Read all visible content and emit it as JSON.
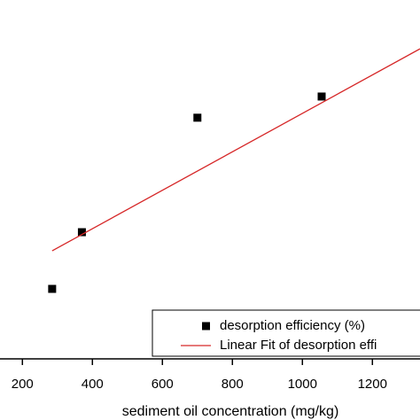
{
  "chart_data": {
    "type": "scatter",
    "x_label": "sediment oil concentration (mg/kg)",
    "xlim": [
      136,
      1336
    ],
    "xticks": [
      200,
      400,
      600,
      800,
      1000,
      1200
    ],
    "ylim": [
      0,
      100
    ],
    "series": [
      {
        "name": "desorption efficiency (%)",
        "color": "#000000",
        "kind": "scatter",
        "x": [
          285,
          370,
          700,
          1055
        ],
        "values": [
          19.5,
          35.3,
          67.2,
          73.1
        ]
      },
      {
        "name": "Linear Fit of desorption effi",
        "color": "#d62728",
        "kind": "line",
        "x": [
          285,
          1336
        ],
        "values": [
          30.1,
          86.4
        ]
      }
    ]
  }
}
